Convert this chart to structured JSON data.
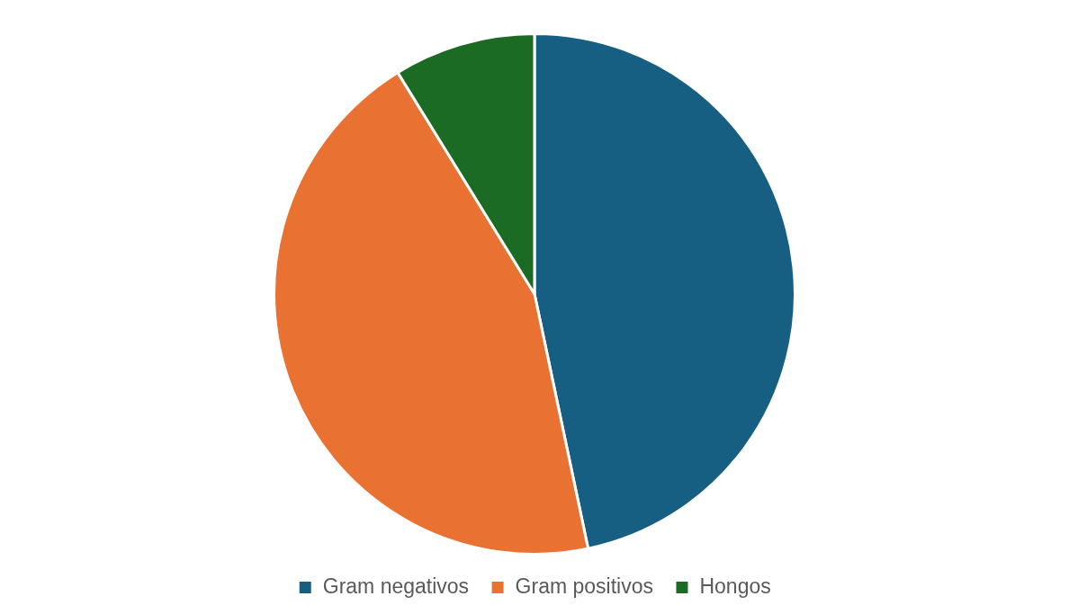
{
  "chart_data": {
    "type": "pie",
    "categories": [
      "Gram negativos",
      "Gram positivos",
      "Hongos"
    ],
    "values": [
      46.7,
      44.5,
      8.8
    ],
    "colors": [
      "#175f82",
      "#e97132",
      "#1b6b24"
    ],
    "legend": "bottom"
  }
}
